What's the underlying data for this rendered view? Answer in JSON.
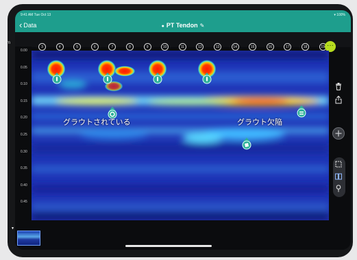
{
  "status_bar": {
    "time": "9:41 AM  Tue Oct 13",
    "system": "▾ 100%"
  },
  "nav": {
    "back_label": "Data",
    "title": "PT Tendon",
    "title_prefix": "●",
    "edit_icon": "pencil-icon"
  },
  "grid": {
    "unit": "m",
    "lines": [
      "3",
      "4",
      "5",
      "6",
      "7",
      "8",
      "9",
      "10",
      "11",
      "12",
      "13",
      "14",
      "15",
      "16",
      "17",
      "18",
      "19"
    ]
  },
  "depth_axis": {
    "ticks": [
      "0.00",
      "0.05",
      "0.10",
      "0.15",
      "0.20",
      "0.25",
      "0.30",
      "0.35",
      "0.40",
      "0.45"
    ]
  },
  "annotations": {
    "grouted": "グラウトされている",
    "void": "グラウト欠陥"
  },
  "markers": [
    "target",
    "target",
    "target",
    "target",
    "grouted",
    "void",
    "void-top"
  ],
  "toolbar": {
    "menu_icon": "ellipsis-icon",
    "items": [
      "trash-icon",
      "share-icon",
      "add-icon",
      "select-box-icon",
      "compare-icon",
      "pin-icon"
    ]
  },
  "colors": {
    "header": "#1e9e8d",
    "accent": "#b6dc1f",
    "radar_bg": "#1a2fb0"
  }
}
